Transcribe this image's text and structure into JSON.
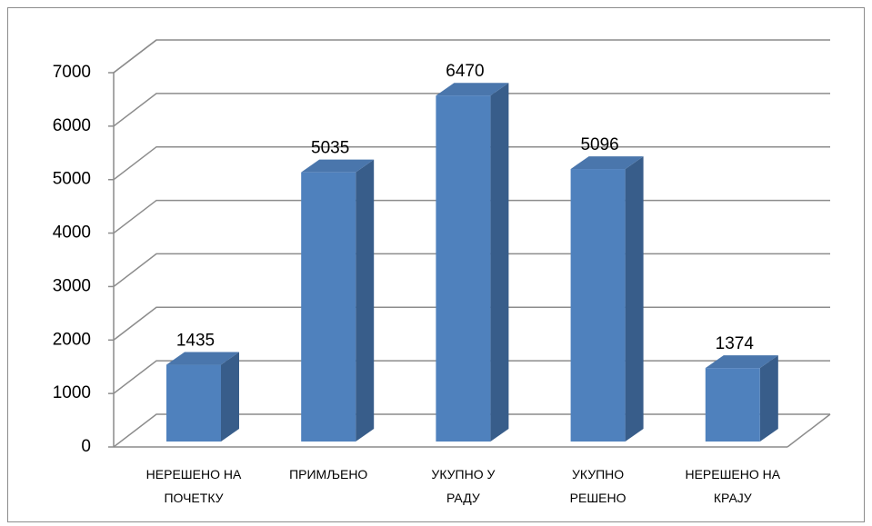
{
  "chart_data": {
    "type": "bar3d",
    "categories": [
      "НЕРЕШЕНО НА\nПОЧЕТКУ",
      "ПРИМЉЕНО",
      "УКУПНО У\nРАДУ",
      "УКУПНО\nРЕШЕНО",
      "НЕРЕШЕНО НА\nКРАЈУ"
    ],
    "values": [
      1435,
      5035,
      6470,
      5096,
      1374
    ],
    "color": "#4f81bd",
    "ylim": [
      0,
      7000
    ],
    "yticks": [
      0,
      1000,
      2000,
      3000,
      4000,
      5000,
      6000,
      7000
    ],
    "grid": true
  }
}
